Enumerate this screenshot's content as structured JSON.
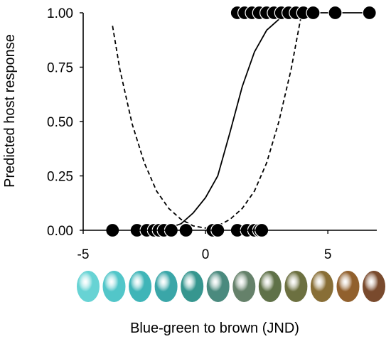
{
  "chart_data": {
    "type": "scatter",
    "title": "",
    "xlabel": "Blue-green to brown (JND)",
    "ylabel": "Predicted host response",
    "xlim": [
      -5,
      7
    ],
    "ylim": [
      0,
      1
    ],
    "x_ticks": [
      -5,
      0,
      5
    ],
    "y_ticks": [
      0,
      0.25,
      0.5,
      0.75,
      1
    ],
    "x_tick_labels": [
      "-5",
      "0",
      "5"
    ],
    "y_tick_labels": [
      "0.00",
      "0.25",
      "0.50",
      "0.75",
      "1.00"
    ],
    "grid": false,
    "legend": "none",
    "series": [
      {
        "kind": "points",
        "y": 0,
        "x": [
          -3.8,
          -2.8,
          -2.4,
          -2.1,
          -1.9,
          -1.7,
          -1.4,
          -0.8,
          0.3,
          0.5,
          1.3,
          1.7,
          2.0,
          2.2,
          2.3
        ]
      },
      {
        "kind": "points",
        "y": 1,
        "x": [
          1.3,
          1.6,
          1.9,
          2.2,
          2.5,
          2.8,
          3.1,
          3.4,
          3.7,
          4.0,
          4.4,
          5.3,
          6.7
        ]
      },
      {
        "kind": "line",
        "style": "solid",
        "x": [
          -1.8,
          -1.5,
          -1.0,
          -0.5,
          0.0,
          0.5,
          1.0,
          1.5,
          2.0,
          2.5,
          3.0,
          3.5,
          4.0,
          5.0,
          6.7
        ],
        "y": [
          0.0,
          0.01,
          0.03,
          0.08,
          0.15,
          0.25,
          0.45,
          0.66,
          0.82,
          0.92,
          0.97,
          0.99,
          1.0,
          1.0,
          1.0
        ]
      },
      {
        "kind": "line",
        "style": "dashed",
        "x": [
          -3.8,
          -3.5,
          -3.0,
          -2.5,
          -2.0,
          -1.5,
          -1.0,
          -0.5,
          0.0,
          0.5,
          1.0,
          1.5,
          2.0,
          2.5,
          3.0,
          3.5,
          3.9
        ],
        "y": [
          0.94,
          0.74,
          0.49,
          0.31,
          0.18,
          0.1,
          0.05,
          0.02,
          0.01,
          0.02,
          0.05,
          0.1,
          0.18,
          0.31,
          0.5,
          0.74,
          0.98
        ]
      }
    ]
  },
  "eggs": {
    "colors": [
      "#67d3d4",
      "#52c6c9",
      "#3fb5b8",
      "#3aa6a8",
      "#36968f",
      "#4a8a7e",
      "#65816a",
      "#5f7148",
      "#6c7040",
      "#886e36",
      "#91602d",
      "#794a2d"
    ]
  }
}
